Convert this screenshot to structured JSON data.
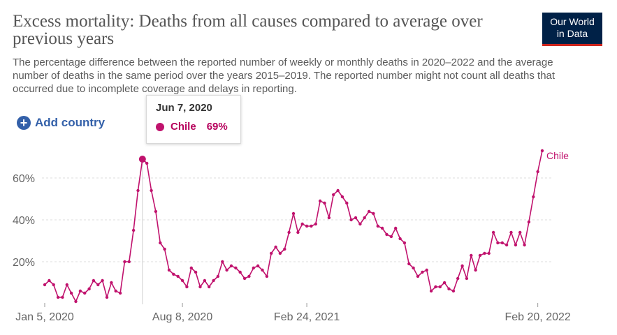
{
  "header": {
    "title": "Excess mortality: Deaths from all causes compared to average over previous years",
    "subtitle": "The percentage difference between the reported number of weekly or monthly deaths in 2020–2022 and the average number of deaths in the same period over the years 2015–2019. The reported number might not count all deaths that occurred due to incomplete coverage and delays in reporting.",
    "logo_line1": "Our World",
    "logo_line2": "in Data"
  },
  "controls": {
    "add_country_label": "Add country",
    "plus_icon": "plus-circle-icon"
  },
  "tooltip": {
    "date": "Jun 7, 2020",
    "entity": "Chile",
    "value": "69%"
  },
  "colors": {
    "series": "#c0126d",
    "axis_text": "#666666",
    "grid": "#dddddd",
    "logo_bg": "#002147",
    "logo_accent": "#ce261e",
    "link": "#3360a9"
  },
  "chart_data": {
    "type": "line",
    "title": "Excess mortality: Deaths from all causes compared to average over previous years",
    "xlabel": "",
    "ylabel": "",
    "x_tick_labels": [
      "Jan 5, 2020",
      "Aug 8, 2020",
      "Feb 24, 2021",
      "Feb 20, 2022"
    ],
    "y_tick_labels": [
      "20%",
      "40%",
      "60%"
    ],
    "y_ticks": [
      20,
      40,
      60
    ],
    "ylim": [
      0,
      75
    ],
    "grid": "horizontal dashed",
    "legend": "end-of-line label",
    "series": [
      {
        "name": "Chile",
        "points": [
          [
            "2020-01-05",
            9
          ],
          [
            "2020-01-12",
            11
          ],
          [
            "2020-01-19",
            9
          ],
          [
            "2020-01-26",
            3
          ],
          [
            "2020-02-02",
            3
          ],
          [
            "2020-02-09",
            9
          ],
          [
            "2020-02-16",
            5
          ],
          [
            "2020-02-23",
            1
          ],
          [
            "2020-03-01",
            6
          ],
          [
            "2020-03-08",
            5
          ],
          [
            "2020-03-15",
            7
          ],
          [
            "2020-03-22",
            11
          ],
          [
            "2020-03-29",
            9
          ],
          [
            "2020-04-05",
            11
          ],
          [
            "2020-04-12",
            3
          ],
          [
            "2020-04-19",
            10
          ],
          [
            "2020-04-26",
            6
          ],
          [
            "2020-05-03",
            5
          ],
          [
            "2020-05-10",
            20
          ],
          [
            "2020-05-17",
            20
          ],
          [
            "2020-05-24",
            35
          ],
          [
            "2020-05-31",
            54
          ],
          [
            "2020-06-07",
            69
          ],
          [
            "2020-06-14",
            67
          ],
          [
            "2020-06-21",
            54
          ],
          [
            "2020-06-28",
            44
          ],
          [
            "2020-07-05",
            29
          ],
          [
            "2020-07-12",
            26
          ],
          [
            "2020-07-19",
            16
          ],
          [
            "2020-07-26",
            14
          ],
          [
            "2020-08-02",
            13
          ],
          [
            "2020-08-09",
            11
          ],
          [
            "2020-08-16",
            8
          ],
          [
            "2020-08-23",
            17
          ],
          [
            "2020-08-30",
            15
          ],
          [
            "2020-09-06",
            8
          ],
          [
            "2020-09-13",
            11
          ],
          [
            "2020-09-20",
            8
          ],
          [
            "2020-09-27",
            11
          ],
          [
            "2020-10-04",
            13
          ],
          [
            "2020-10-11",
            20
          ],
          [
            "2020-10-18",
            16
          ],
          [
            "2020-10-25",
            18
          ],
          [
            "2020-11-01",
            17
          ],
          [
            "2020-11-08",
            15
          ],
          [
            "2020-11-15",
            12
          ],
          [
            "2020-11-22",
            13
          ],
          [
            "2020-11-29",
            17
          ],
          [
            "2020-12-06",
            18
          ],
          [
            "2020-12-13",
            16
          ],
          [
            "2020-12-20",
            13
          ],
          [
            "2020-12-27",
            24
          ],
          [
            "2021-01-03",
            27
          ],
          [
            "2021-01-10",
            24
          ],
          [
            "2021-01-17",
            26
          ],
          [
            "2021-01-24",
            34
          ],
          [
            "2021-01-31",
            43
          ],
          [
            "2021-02-07",
            34
          ],
          [
            "2021-02-14",
            38
          ],
          [
            "2021-02-21",
            37
          ],
          [
            "2021-02-28",
            37
          ],
          [
            "2021-03-07",
            38
          ],
          [
            "2021-03-14",
            49
          ],
          [
            "2021-03-21",
            48
          ],
          [
            "2021-03-28",
            41
          ],
          [
            "2021-04-04",
            52
          ],
          [
            "2021-04-11",
            54
          ],
          [
            "2021-04-18",
            51
          ],
          [
            "2021-04-25",
            48
          ],
          [
            "2021-05-02",
            40
          ],
          [
            "2021-05-09",
            41
          ],
          [
            "2021-05-16",
            38
          ],
          [
            "2021-05-23",
            41
          ],
          [
            "2021-05-30",
            44
          ],
          [
            "2021-06-06",
            43
          ],
          [
            "2021-06-13",
            37
          ],
          [
            "2021-06-20",
            36
          ],
          [
            "2021-06-27",
            33
          ],
          [
            "2021-07-04",
            32
          ],
          [
            "2021-07-11",
            36
          ],
          [
            "2021-07-18",
            31
          ],
          [
            "2021-07-25",
            29
          ],
          [
            "2021-08-01",
            19
          ],
          [
            "2021-08-08",
            17
          ],
          [
            "2021-08-15",
            13
          ],
          [
            "2021-08-22",
            15
          ],
          [
            "2021-08-29",
            16
          ],
          [
            "2021-09-05",
            6
          ],
          [
            "2021-09-12",
            8
          ],
          [
            "2021-09-19",
            8
          ],
          [
            "2021-09-26",
            10
          ],
          [
            "2021-10-03",
            7
          ],
          [
            "2021-10-10",
            6
          ],
          [
            "2021-10-17",
            12
          ],
          [
            "2021-10-24",
            18
          ],
          [
            "2021-10-31",
            12
          ],
          [
            "2021-11-07",
            23
          ],
          [
            "2021-11-14",
            16
          ],
          [
            "2021-11-21",
            23
          ],
          [
            "2021-11-28",
            24
          ],
          [
            "2021-12-05",
            24
          ],
          [
            "2021-12-12",
            34
          ],
          [
            "2021-12-19",
            29
          ],
          [
            "2021-12-26",
            29
          ],
          [
            "2022-01-02",
            28
          ],
          [
            "2022-01-09",
            34
          ],
          [
            "2022-01-16",
            28
          ],
          [
            "2022-01-23",
            34
          ],
          [
            "2022-01-30",
            28
          ],
          [
            "2022-02-06",
            39
          ],
          [
            "2022-02-13",
            51
          ],
          [
            "2022-02-20",
            63
          ],
          [
            "2022-02-27",
            73
          ]
        ],
        "highlight": [
          "2020-06-07",
          69
        ]
      }
    ]
  }
}
